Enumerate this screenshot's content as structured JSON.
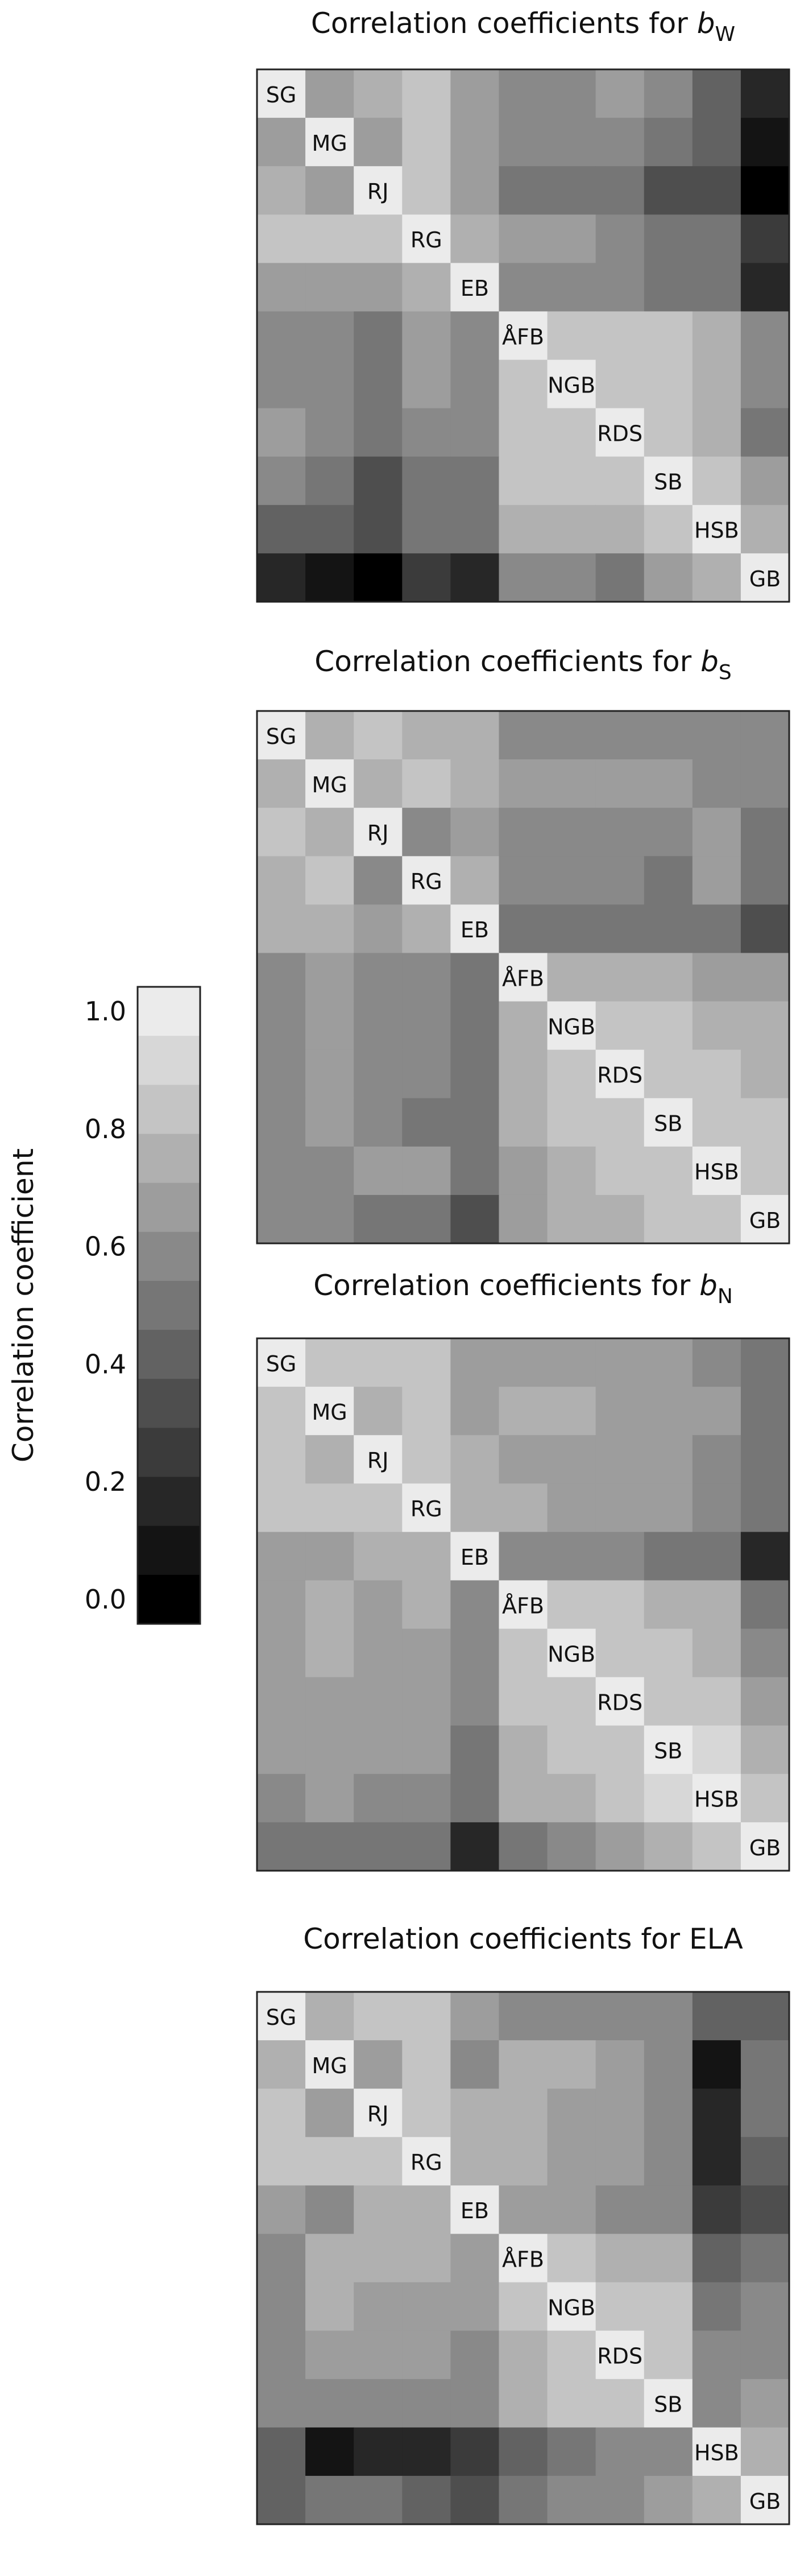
{
  "chart_data": {
    "type": "heatmap",
    "colorbar": {
      "label": "Correlation coefficient",
      "ticks": [
        {
          "value": 1.0,
          "label": "1.0"
        },
        {
          "value": 0.8,
          "label": "0.8"
        },
        {
          "value": 0.6,
          "label": "0.6"
        },
        {
          "value": 0.4,
          "label": "0.4"
        },
        {
          "value": 0.2,
          "label": "0.2"
        },
        {
          "value": 0.0,
          "label": "0.0"
        }
      ],
      "range": [
        0,
        1
      ],
      "steps": 13,
      "scale": "grayscale (0 = black, 1 = white)"
    },
    "panels": [
      {
        "title_prefix": "Correlation coefficients for ",
        "title_var": "b",
        "title_sub": "W",
        "sites": [
          "SG",
          "MG",
          "RJ",
          "RG",
          "EB",
          "ÅFB",
          "NGB",
          "RDS",
          "SB",
          "HSB",
          "GB"
        ],
        "matrix": [
          [
            1.0,
            0.7,
            0.74,
            0.85,
            0.65,
            0.62,
            0.62,
            0.64,
            0.55,
            0.45,
            0.2
          ],
          [
            0.7,
            1.0,
            0.7,
            0.8,
            0.64,
            0.58,
            0.58,
            0.56,
            0.5,
            0.42,
            0.1
          ],
          [
            0.74,
            0.7,
            1.0,
            0.84,
            0.66,
            0.46,
            0.48,
            0.52,
            0.36,
            0.3,
            0.04
          ],
          [
            0.85,
            0.8,
            0.84,
            1.0,
            0.74,
            0.66,
            0.64,
            0.62,
            0.52,
            0.48,
            0.22
          ],
          [
            0.65,
            0.64,
            0.66,
            0.74,
            1.0,
            0.62,
            0.6,
            0.58,
            0.5,
            0.46,
            0.14
          ],
          [
            0.62,
            0.58,
            0.46,
            0.66,
            0.62,
            1.0,
            0.84,
            0.82,
            0.8,
            0.72,
            0.58
          ],
          [
            0.62,
            0.58,
            0.48,
            0.64,
            0.6,
            0.84,
            1.0,
            0.86,
            0.82,
            0.76,
            0.62
          ],
          [
            0.64,
            0.56,
            0.52,
            0.62,
            0.58,
            0.82,
            0.86,
            1.0,
            0.84,
            0.78,
            0.52
          ],
          [
            0.55,
            0.5,
            0.36,
            0.52,
            0.5,
            0.8,
            0.82,
            0.84,
            1.0,
            0.86,
            0.68
          ],
          [
            0.45,
            0.42,
            0.3,
            0.48,
            0.46,
            0.72,
            0.76,
            0.78,
            0.86,
            1.0,
            0.78
          ],
          [
            0.2,
            0.1,
            0.04,
            0.22,
            0.14,
            0.58,
            0.62,
            0.52,
            0.68,
            0.78,
            1.0
          ]
        ]
      },
      {
        "title_prefix": "Correlation coefficients for ",
        "title_var": "b",
        "title_sub": "S",
        "sites": [
          "SG",
          "MG",
          "RJ",
          "RG",
          "EB",
          "ÅFB",
          "NGB",
          "RDS",
          "SB",
          "HSB",
          "GB"
        ],
        "matrix": [
          [
            1.0,
            0.76,
            0.8,
            0.76,
            0.74,
            0.6,
            0.58,
            0.6,
            0.62,
            0.58,
            0.56
          ],
          [
            0.76,
            1.0,
            0.76,
            0.86,
            0.72,
            0.66,
            0.64,
            0.66,
            0.64,
            0.62,
            0.58
          ],
          [
            0.8,
            0.76,
            1.0,
            0.6,
            0.7,
            0.6,
            0.58,
            0.62,
            0.6,
            0.66,
            0.5
          ],
          [
            0.76,
            0.86,
            0.6,
            1.0,
            0.74,
            0.6,
            0.56,
            0.6,
            0.5,
            0.66,
            0.48
          ],
          [
            0.74,
            0.72,
            0.7,
            0.74,
            1.0,
            0.52,
            0.52,
            0.5,
            0.46,
            0.5,
            0.34
          ],
          [
            0.6,
            0.66,
            0.6,
            0.6,
            0.52,
            1.0,
            0.78,
            0.74,
            0.72,
            0.7,
            0.64
          ],
          [
            0.58,
            0.64,
            0.58,
            0.56,
            0.52,
            0.78,
            1.0,
            0.84,
            0.8,
            0.78,
            0.74
          ],
          [
            0.6,
            0.66,
            0.62,
            0.6,
            0.5,
            0.74,
            0.84,
            1.0,
            0.84,
            0.82,
            0.76
          ],
          [
            0.62,
            0.64,
            0.6,
            0.5,
            0.46,
            0.72,
            0.8,
            0.84,
            1.0,
            0.86,
            0.8
          ],
          [
            0.58,
            0.62,
            0.66,
            0.66,
            0.5,
            0.7,
            0.78,
            0.82,
            0.86,
            1.0,
            0.84
          ],
          [
            0.56,
            0.58,
            0.5,
            0.48,
            0.34,
            0.64,
            0.74,
            0.76,
            0.8,
            0.84,
            1.0
          ]
        ]
      },
      {
        "title_prefix": "Correlation coefficients for ",
        "title_var": "b",
        "title_sub": "N",
        "sites": [
          "SG",
          "MG",
          "RJ",
          "RG",
          "EB",
          "ÅFB",
          "NGB",
          "RDS",
          "SB",
          "HSB",
          "GB"
        ],
        "matrix": [
          [
            1.0,
            0.8,
            0.84,
            0.86,
            0.66,
            0.7,
            0.7,
            0.68,
            0.66,
            0.62,
            0.48
          ],
          [
            0.8,
            1.0,
            0.78,
            0.86,
            0.64,
            0.74,
            0.76,
            0.7,
            0.68,
            0.64,
            0.52
          ],
          [
            0.84,
            0.78,
            1.0,
            0.8,
            0.72,
            0.7,
            0.68,
            0.66,
            0.64,
            0.6,
            0.46
          ],
          [
            0.86,
            0.86,
            0.8,
            1.0,
            0.74,
            0.72,
            0.7,
            0.68,
            0.66,
            0.62,
            0.5
          ],
          [
            0.66,
            0.64,
            0.72,
            0.74,
            1.0,
            0.62,
            0.58,
            0.56,
            0.5,
            0.46,
            0.2
          ],
          [
            0.7,
            0.74,
            0.7,
            0.72,
            0.62,
            1.0,
            0.82,
            0.8,
            0.76,
            0.72,
            0.48
          ],
          [
            0.7,
            0.76,
            0.68,
            0.7,
            0.58,
            0.82,
            1.0,
            0.86,
            0.82,
            0.78,
            0.6
          ],
          [
            0.68,
            0.7,
            0.66,
            0.68,
            0.56,
            0.8,
            0.86,
            1.0,
            0.84,
            0.8,
            0.64
          ],
          [
            0.66,
            0.68,
            0.64,
            0.66,
            0.5,
            0.76,
            0.82,
            0.84,
            1.0,
            0.88,
            0.74
          ],
          [
            0.62,
            0.64,
            0.6,
            0.62,
            0.46,
            0.72,
            0.78,
            0.8,
            0.88,
            1.0,
            0.8
          ],
          [
            0.48,
            0.52,
            0.46,
            0.5,
            0.2,
            0.48,
            0.6,
            0.64,
            0.74,
            0.8,
            1.0
          ]
        ]
      },
      {
        "title_prefix": "Correlation coefficients for ELA",
        "title_var": "",
        "title_sub": "",
        "sites": [
          "SG",
          "MG",
          "RJ",
          "RG",
          "EB",
          "ÅFB",
          "NGB",
          "RDS",
          "SB",
          "HSB",
          "GB"
        ],
        "matrix": [
          [
            1.0,
            0.72,
            0.84,
            0.84,
            0.66,
            0.62,
            0.62,
            0.6,
            0.58,
            0.4,
            0.44
          ],
          [
            0.72,
            1.0,
            0.7,
            0.8,
            0.6,
            0.74,
            0.78,
            0.66,
            0.62,
            0.06,
            0.5
          ],
          [
            0.84,
            0.7,
            1.0,
            0.8,
            0.74,
            0.72,
            0.7,
            0.66,
            0.6,
            0.16,
            0.46
          ],
          [
            0.84,
            0.8,
            0.8,
            1.0,
            0.76,
            0.74,
            0.7,
            0.66,
            0.58,
            0.2,
            0.44
          ],
          [
            0.66,
            0.6,
            0.74,
            0.76,
            1.0,
            0.66,
            0.64,
            0.6,
            0.56,
            0.24,
            0.32
          ],
          [
            0.62,
            0.74,
            0.72,
            0.74,
            0.66,
            1.0,
            0.8,
            0.78,
            0.72,
            0.4,
            0.52
          ],
          [
            0.62,
            0.78,
            0.7,
            0.7,
            0.64,
            0.8,
            1.0,
            0.84,
            0.8,
            0.52,
            0.6
          ],
          [
            0.6,
            0.66,
            0.66,
            0.66,
            0.6,
            0.78,
            0.84,
            1.0,
            0.84,
            0.56,
            0.62
          ],
          [
            0.58,
            0.62,
            0.6,
            0.58,
            0.56,
            0.72,
            0.8,
            0.84,
            1.0,
            0.6,
            0.66
          ],
          [
            0.4,
            0.06,
            0.16,
            0.2,
            0.24,
            0.4,
            0.52,
            0.56,
            0.6,
            1.0,
            0.72
          ],
          [
            0.44,
            0.5,
            0.46,
            0.44,
            0.32,
            0.52,
            0.6,
            0.62,
            0.66,
            0.72,
            1.0
          ]
        ]
      }
    ]
  }
}
